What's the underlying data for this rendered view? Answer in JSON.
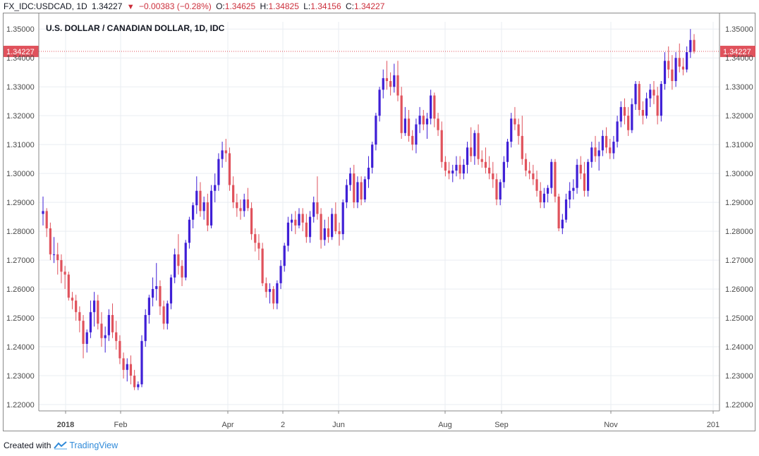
{
  "header": {
    "symbol": "FX_IDC:USDCAD, 1D",
    "last": "1.34227",
    "change": "−0.00383 (−0.28%)",
    "o_label": "O:",
    "o_value": "1.34625",
    "h_label": "H:",
    "h_value": "1.34825",
    "l_label": "L:",
    "l_value": "1.34156",
    "c_label": "C:",
    "c_value": "1.34227"
  },
  "chart_data": {
    "type": "candlestick",
    "title": "U.S. DOLLAR / CANADIAN DOLLAR, 1D, IDC",
    "y_ticks": [
      "1.35000",
      "1.34000",
      "1.33000",
      "1.32000",
      "1.31000",
      "1.30000",
      "1.29000",
      "1.28000",
      "1.27000",
      "1.26000",
      "1.25000",
      "1.24000",
      "1.23000",
      "1.22000"
    ],
    "ylim": [
      1.2178,
      1.3525
    ],
    "x_ticks": [
      "2018",
      "Feb",
      "Apr",
      "2",
      "Jun",
      "Aug",
      "Sep",
      "Nov",
      "201"
    ],
    "current_price_label": "1.34227",
    "grid": true,
    "colors": {
      "up": "#3f1fd6",
      "down": "#e0525c",
      "price_line": "#e0525c"
    },
    "candles": [
      {
        "o": 1.286,
        "h": 1.292,
        "l": 1.282,
        "c": 1.287
      },
      {
        "o": 1.287,
        "h": 1.288,
        "l": 1.278,
        "c": 1.281
      },
      {
        "o": 1.281,
        "h": 1.283,
        "l": 1.27,
        "c": 1.272
      },
      {
        "o": 1.272,
        "h": 1.278,
        "l": 1.269,
        "c": 1.272
      },
      {
        "o": 1.272,
        "h": 1.276,
        "l": 1.265,
        "c": 1.27
      },
      {
        "o": 1.27,
        "h": 1.272,
        "l": 1.262,
        "c": 1.266
      },
      {
        "o": 1.266,
        "h": 1.268,
        "l": 1.26,
        "c": 1.265
      },
      {
        "o": 1.265,
        "h": 1.266,
        "l": 1.256,
        "c": 1.257
      },
      {
        "o": 1.257,
        "h": 1.259,
        "l": 1.253,
        "c": 1.256
      },
      {
        "o": 1.256,
        "h": 1.258,
        "l": 1.249,
        "c": 1.252
      },
      {
        "o": 1.252,
        "h": 1.254,
        "l": 1.245,
        "c": 1.249
      },
      {
        "o": 1.249,
        "h": 1.251,
        "l": 1.236,
        "c": 1.241
      },
      {
        "o": 1.241,
        "h": 1.246,
        "l": 1.238,
        "c": 1.245
      },
      {
        "o": 1.245,
        "h": 1.256,
        "l": 1.243,
        "c": 1.252
      },
      {
        "o": 1.252,
        "h": 1.259,
        "l": 1.247,
        "c": 1.256
      },
      {
        "o": 1.256,
        "h": 1.258,
        "l": 1.246,
        "c": 1.248
      },
      {
        "o": 1.248,
        "h": 1.252,
        "l": 1.24,
        "c": 1.243
      },
      {
        "o": 1.243,
        "h": 1.247,
        "l": 1.238,
        "c": 1.244
      },
      {
        "o": 1.244,
        "h": 1.253,
        "l": 1.242,
        "c": 1.251
      },
      {
        "o": 1.251,
        "h": 1.255,
        "l": 1.243,
        "c": 1.245
      },
      {
        "o": 1.245,
        "h": 1.249,
        "l": 1.239,
        "c": 1.242
      },
      {
        "o": 1.242,
        "h": 1.244,
        "l": 1.234,
        "c": 1.236
      },
      {
        "o": 1.236,
        "h": 1.238,
        "l": 1.229,
        "c": 1.232
      },
      {
        "o": 1.232,
        "h": 1.236,
        "l": 1.228,
        "c": 1.234
      },
      {
        "o": 1.234,
        "h": 1.237,
        "l": 1.227,
        "c": 1.23
      },
      {
        "o": 1.23,
        "h": 1.232,
        "l": 1.225,
        "c": 1.226
      },
      {
        "o": 1.226,
        "h": 1.228,
        "l": 1.225,
        "c": 1.227
      },
      {
        "o": 1.227,
        "h": 1.244,
        "l": 1.226,
        "c": 1.242
      },
      {
        "o": 1.242,
        "h": 1.253,
        "l": 1.24,
        "c": 1.251
      },
      {
        "o": 1.251,
        "h": 1.258,
        "l": 1.248,
        "c": 1.257
      },
      {
        "o": 1.257,
        "h": 1.264,
        "l": 1.254,
        "c": 1.26
      },
      {
        "o": 1.26,
        "h": 1.269,
        "l": 1.256,
        "c": 1.261
      },
      {
        "o": 1.261,
        "h": 1.263,
        "l": 1.251,
        "c": 1.254
      },
      {
        "o": 1.254,
        "h": 1.256,
        "l": 1.246,
        "c": 1.248
      },
      {
        "o": 1.248,
        "h": 1.256,
        "l": 1.246,
        "c": 1.255
      },
      {
        "o": 1.255,
        "h": 1.265,
        "l": 1.253,
        "c": 1.264
      },
      {
        "o": 1.264,
        "h": 1.274,
        "l": 1.262,
        "c": 1.272
      },
      {
        "o": 1.272,
        "h": 1.279,
        "l": 1.265,
        "c": 1.268
      },
      {
        "o": 1.268,
        "h": 1.27,
        "l": 1.261,
        "c": 1.264
      },
      {
        "o": 1.264,
        "h": 1.277,
        "l": 1.263,
        "c": 1.276
      },
      {
        "o": 1.276,
        "h": 1.285,
        "l": 1.274,
        "c": 1.284
      },
      {
        "o": 1.284,
        "h": 1.29,
        "l": 1.281,
        "c": 1.289
      },
      {
        "o": 1.289,
        "h": 1.299,
        "l": 1.286,
        "c": 1.294
      },
      {
        "o": 1.294,
        "h": 1.297,
        "l": 1.285,
        "c": 1.287
      },
      {
        "o": 1.287,
        "h": 1.292,
        "l": 1.284,
        "c": 1.29
      },
      {
        "o": 1.29,
        "h": 1.293,
        "l": 1.28,
        "c": 1.282
      },
      {
        "o": 1.282,
        "h": 1.296,
        "l": 1.281,
        "c": 1.294
      },
      {
        "o": 1.294,
        "h": 1.3,
        "l": 1.29,
        "c": 1.296
      },
      {
        "o": 1.296,
        "h": 1.307,
        "l": 1.294,
        "c": 1.305
      },
      {
        "o": 1.305,
        "h": 1.311,
        "l": 1.302,
        "c": 1.308
      },
      {
        "o": 1.308,
        "h": 1.312,
        "l": 1.304,
        "c": 1.307
      },
      {
        "o": 1.307,
        "h": 1.309,
        "l": 1.294,
        "c": 1.296
      },
      {
        "o": 1.296,
        "h": 1.299,
        "l": 1.288,
        "c": 1.29
      },
      {
        "o": 1.29,
        "h": 1.293,
        "l": 1.285,
        "c": 1.288
      },
      {
        "o": 1.288,
        "h": 1.291,
        "l": 1.284,
        "c": 1.287
      },
      {
        "o": 1.287,
        "h": 1.293,
        "l": 1.285,
        "c": 1.291
      },
      {
        "o": 1.291,
        "h": 1.295,
        "l": 1.287,
        "c": 1.288
      },
      {
        "o": 1.288,
        "h": 1.29,
        "l": 1.277,
        "c": 1.279
      },
      {
        "o": 1.279,
        "h": 1.281,
        "l": 1.273,
        "c": 1.276
      },
      {
        "o": 1.276,
        "h": 1.279,
        "l": 1.27,
        "c": 1.274
      },
      {
        "o": 1.274,
        "h": 1.276,
        "l": 1.261,
        "c": 1.262
      },
      {
        "o": 1.262,
        "h": 1.264,
        "l": 1.257,
        "c": 1.259
      },
      {
        "o": 1.259,
        "h": 1.262,
        "l": 1.255,
        "c": 1.26
      },
      {
        "o": 1.26,
        "h": 1.261,
        "l": 1.253,
        "c": 1.255
      },
      {
        "o": 1.255,
        "h": 1.263,
        "l": 1.253,
        "c": 1.262
      },
      {
        "o": 1.262,
        "h": 1.27,
        "l": 1.26,
        "c": 1.268
      },
      {
        "o": 1.268,
        "h": 1.276,
        "l": 1.266,
        "c": 1.275
      },
      {
        "o": 1.275,
        "h": 1.285,
        "l": 1.273,
        "c": 1.283
      },
      {
        "o": 1.283,
        "h": 1.286,
        "l": 1.28,
        "c": 1.284
      },
      {
        "o": 1.284,
        "h": 1.287,
        "l": 1.279,
        "c": 1.282
      },
      {
        "o": 1.282,
        "h": 1.288,
        "l": 1.281,
        "c": 1.286
      },
      {
        "o": 1.286,
        "h": 1.288,
        "l": 1.28,
        "c": 1.283
      },
      {
        "o": 1.283,
        "h": 1.286,
        "l": 1.276,
        "c": 1.278
      },
      {
        "o": 1.278,
        "h": 1.287,
        "l": 1.276,
        "c": 1.285
      },
      {
        "o": 1.285,
        "h": 1.292,
        "l": 1.283,
        "c": 1.29
      },
      {
        "o": 1.29,
        "h": 1.299,
        "l": 1.284,
        "c": 1.286
      },
      {
        "o": 1.286,
        "h": 1.288,
        "l": 1.274,
        "c": 1.277
      },
      {
        "o": 1.277,
        "h": 1.284,
        "l": 1.275,
        "c": 1.281
      },
      {
        "o": 1.281,
        "h": 1.285,
        "l": 1.276,
        "c": 1.278
      },
      {
        "o": 1.278,
        "h": 1.288,
        "l": 1.277,
        "c": 1.286
      },
      {
        "o": 1.286,
        "h": 1.29,
        "l": 1.279,
        "c": 1.28
      },
      {
        "o": 1.28,
        "h": 1.283,
        "l": 1.275,
        "c": 1.279
      },
      {
        "o": 1.279,
        "h": 1.291,
        "l": 1.277,
        "c": 1.29
      },
      {
        "o": 1.29,
        "h": 1.298,
        "l": 1.288,
        "c": 1.296
      },
      {
        "o": 1.296,
        "h": 1.302,
        "l": 1.294,
        "c": 1.3
      },
      {
        "o": 1.3,
        "h": 1.303,
        "l": 1.288,
        "c": 1.29
      },
      {
        "o": 1.29,
        "h": 1.299,
        "l": 1.288,
        "c": 1.297
      },
      {
        "o": 1.297,
        "h": 1.299,
        "l": 1.289,
        "c": 1.291
      },
      {
        "o": 1.291,
        "h": 1.299,
        "l": 1.29,
        "c": 1.298
      },
      {
        "o": 1.298,
        "h": 1.306,
        "l": 1.295,
        "c": 1.302
      },
      {
        "o": 1.302,
        "h": 1.311,
        "l": 1.3,
        "c": 1.31
      },
      {
        "o": 1.31,
        "h": 1.321,
        "l": 1.308,
        "c": 1.32
      },
      {
        "o": 1.32,
        "h": 1.33,
        "l": 1.318,
        "c": 1.329
      },
      {
        "o": 1.329,
        "h": 1.336,
        "l": 1.326,
        "c": 1.333
      },
      {
        "o": 1.333,
        "h": 1.339,
        "l": 1.329,
        "c": 1.332
      },
      {
        "o": 1.332,
        "h": 1.335,
        "l": 1.327,
        "c": 1.33
      },
      {
        "o": 1.33,
        "h": 1.338,
        "l": 1.328,
        "c": 1.334
      },
      {
        "o": 1.334,
        "h": 1.339,
        "l": 1.325,
        "c": 1.327
      },
      {
        "o": 1.327,
        "h": 1.33,
        "l": 1.312,
        "c": 1.314
      },
      {
        "o": 1.314,
        "h": 1.323,
        "l": 1.313,
        "c": 1.319
      },
      {
        "o": 1.319,
        "h": 1.322,
        "l": 1.311,
        "c": 1.313
      },
      {
        "o": 1.313,
        "h": 1.315,
        "l": 1.308,
        "c": 1.31
      },
      {
        "o": 1.31,
        "h": 1.319,
        "l": 1.307,
        "c": 1.317
      },
      {
        "o": 1.317,
        "h": 1.323,
        "l": 1.314,
        "c": 1.32
      },
      {
        "o": 1.32,
        "h": 1.322,
        "l": 1.315,
        "c": 1.317
      },
      {
        "o": 1.317,
        "h": 1.321,
        "l": 1.312,
        "c": 1.319
      },
      {
        "o": 1.319,
        "h": 1.329,
        "l": 1.317,
        "c": 1.327
      },
      {
        "o": 1.327,
        "h": 1.328,
        "l": 1.316,
        "c": 1.319
      },
      {
        "o": 1.319,
        "h": 1.321,
        "l": 1.313,
        "c": 1.315
      },
      {
        "o": 1.315,
        "h": 1.318,
        "l": 1.302,
        "c": 1.304
      },
      {
        "o": 1.304,
        "h": 1.306,
        "l": 1.299,
        "c": 1.301
      },
      {
        "o": 1.301,
        "h": 1.304,
        "l": 1.298,
        "c": 1.3
      },
      {
        "o": 1.3,
        "h": 1.303,
        "l": 1.297,
        "c": 1.301
      },
      {
        "o": 1.301,
        "h": 1.306,
        "l": 1.299,
        "c": 1.303
      },
      {
        "o": 1.303,
        "h": 1.306,
        "l": 1.298,
        "c": 1.3
      },
      {
        "o": 1.3,
        "h": 1.305,
        "l": 1.298,
        "c": 1.303
      },
      {
        "o": 1.303,
        "h": 1.311,
        "l": 1.3,
        "c": 1.309
      },
      {
        "o": 1.309,
        "h": 1.316,
        "l": 1.304,
        "c": 1.306
      },
      {
        "o": 1.306,
        "h": 1.315,
        "l": 1.303,
        "c": 1.314
      },
      {
        "o": 1.314,
        "h": 1.317,
        "l": 1.303,
        "c": 1.305
      },
      {
        "o": 1.305,
        "h": 1.308,
        "l": 1.302,
        "c": 1.304
      },
      {
        "o": 1.304,
        "h": 1.309,
        "l": 1.3,
        "c": 1.302
      },
      {
        "o": 1.302,
        "h": 1.306,
        "l": 1.298,
        "c": 1.3
      },
      {
        "o": 1.3,
        "h": 1.304,
        "l": 1.295,
        "c": 1.298
      },
      {
        "o": 1.298,
        "h": 1.3,
        "l": 1.289,
        "c": 1.291
      },
      {
        "o": 1.291,
        "h": 1.298,
        "l": 1.289,
        "c": 1.297
      },
      {
        "o": 1.297,
        "h": 1.306,
        "l": 1.295,
        "c": 1.304
      },
      {
        "o": 1.304,
        "h": 1.312,
        "l": 1.302,
        "c": 1.311
      },
      {
        "o": 1.311,
        "h": 1.321,
        "l": 1.309,
        "c": 1.319
      },
      {
        "o": 1.319,
        "h": 1.323,
        "l": 1.315,
        "c": 1.317
      },
      {
        "o": 1.317,
        "h": 1.319,
        "l": 1.31,
        "c": 1.313
      },
      {
        "o": 1.313,
        "h": 1.32,
        "l": 1.303,
        "c": 1.305
      },
      {
        "o": 1.305,
        "h": 1.307,
        "l": 1.299,
        "c": 1.301
      },
      {
        "o": 1.301,
        "h": 1.304,
        "l": 1.298,
        "c": 1.3
      },
      {
        "o": 1.3,
        "h": 1.303,
        "l": 1.296,
        "c": 1.298
      },
      {
        "o": 1.298,
        "h": 1.301,
        "l": 1.292,
        "c": 1.294
      },
      {
        "o": 1.294,
        "h": 1.297,
        "l": 1.288,
        "c": 1.29
      },
      {
        "o": 1.29,
        "h": 1.295,
        "l": 1.288,
        "c": 1.293
      },
      {
        "o": 1.293,
        "h": 1.296,
        "l": 1.29,
        "c": 1.295
      },
      {
        "o": 1.295,
        "h": 1.305,
        "l": 1.293,
        "c": 1.304
      },
      {
        "o": 1.304,
        "h": 1.305,
        "l": 1.29,
        "c": 1.292
      },
      {
        "o": 1.292,
        "h": 1.293,
        "l": 1.28,
        "c": 1.281
      },
      {
        "o": 1.281,
        "h": 1.286,
        "l": 1.279,
        "c": 1.284
      },
      {
        "o": 1.284,
        "h": 1.293,
        "l": 1.283,
        "c": 1.291
      },
      {
        "o": 1.291,
        "h": 1.297,
        "l": 1.288,
        "c": 1.294
      },
      {
        "o": 1.294,
        "h": 1.298,
        "l": 1.291,
        "c": 1.295
      },
      {
        "o": 1.295,
        "h": 1.305,
        "l": 1.293,
        "c": 1.303
      },
      {
        "o": 1.303,
        "h": 1.306,
        "l": 1.298,
        "c": 1.3
      },
      {
        "o": 1.3,
        "h": 1.304,
        "l": 1.292,
        "c": 1.294
      },
      {
        "o": 1.294,
        "h": 1.305,
        "l": 1.292,
        "c": 1.304
      },
      {
        "o": 1.304,
        "h": 1.311,
        "l": 1.302,
        "c": 1.309
      },
      {
        "o": 1.309,
        "h": 1.313,
        "l": 1.304,
        "c": 1.306
      },
      {
        "o": 1.306,
        "h": 1.311,
        "l": 1.301,
        "c": 1.308
      },
      {
        "o": 1.308,
        "h": 1.315,
        "l": 1.306,
        "c": 1.313
      },
      {
        "o": 1.313,
        "h": 1.316,
        "l": 1.307,
        "c": 1.309
      },
      {
        "o": 1.309,
        "h": 1.312,
        "l": 1.305,
        "c": 1.307
      },
      {
        "o": 1.307,
        "h": 1.313,
        "l": 1.305,
        "c": 1.311
      },
      {
        "o": 1.311,
        "h": 1.32,
        "l": 1.309,
        "c": 1.318
      },
      {
        "o": 1.318,
        "h": 1.325,
        "l": 1.316,
        "c": 1.323
      },
      {
        "o": 1.323,
        "h": 1.326,
        "l": 1.317,
        "c": 1.32
      },
      {
        "o": 1.32,
        "h": 1.323,
        "l": 1.313,
        "c": 1.315
      },
      {
        "o": 1.315,
        "h": 1.326,
        "l": 1.314,
        "c": 1.324
      },
      {
        "o": 1.324,
        "h": 1.332,
        "l": 1.322,
        "c": 1.331
      },
      {
        "o": 1.331,
        "h": 1.332,
        "l": 1.32,
        "c": 1.322
      },
      {
        "o": 1.322,
        "h": 1.325,
        "l": 1.317,
        "c": 1.32
      },
      {
        "o": 1.32,
        "h": 1.328,
        "l": 1.319,
        "c": 1.326
      },
      {
        "o": 1.326,
        "h": 1.331,
        "l": 1.323,
        "c": 1.329
      },
      {
        "o": 1.329,
        "h": 1.332,
        "l": 1.324,
        "c": 1.327
      },
      {
        "o": 1.327,
        "h": 1.33,
        "l": 1.317,
        "c": 1.32
      },
      {
        "o": 1.32,
        "h": 1.332,
        "l": 1.318,
        "c": 1.331
      },
      {
        "o": 1.331,
        "h": 1.342,
        "l": 1.329,
        "c": 1.339
      },
      {
        "o": 1.339,
        "h": 1.344,
        "l": 1.333,
        "c": 1.336
      },
      {
        "o": 1.336,
        "h": 1.341,
        "l": 1.329,
        "c": 1.332
      },
      {
        "o": 1.332,
        "h": 1.342,
        "l": 1.33,
        "c": 1.34
      },
      {
        "o": 1.34,
        "h": 1.345,
        "l": 1.335,
        "c": 1.337
      },
      {
        "o": 1.337,
        "h": 1.34,
        "l": 1.334,
        "c": 1.336
      },
      {
        "o": 1.336,
        "h": 1.344,
        "l": 1.335,
        "c": 1.342
      },
      {
        "o": 1.342,
        "h": 1.35,
        "l": 1.34,
        "c": 1.3462
      },
      {
        "o": 1.34625,
        "h": 1.34825,
        "l": 1.34156,
        "c": 1.34227
      }
    ]
  }
}
